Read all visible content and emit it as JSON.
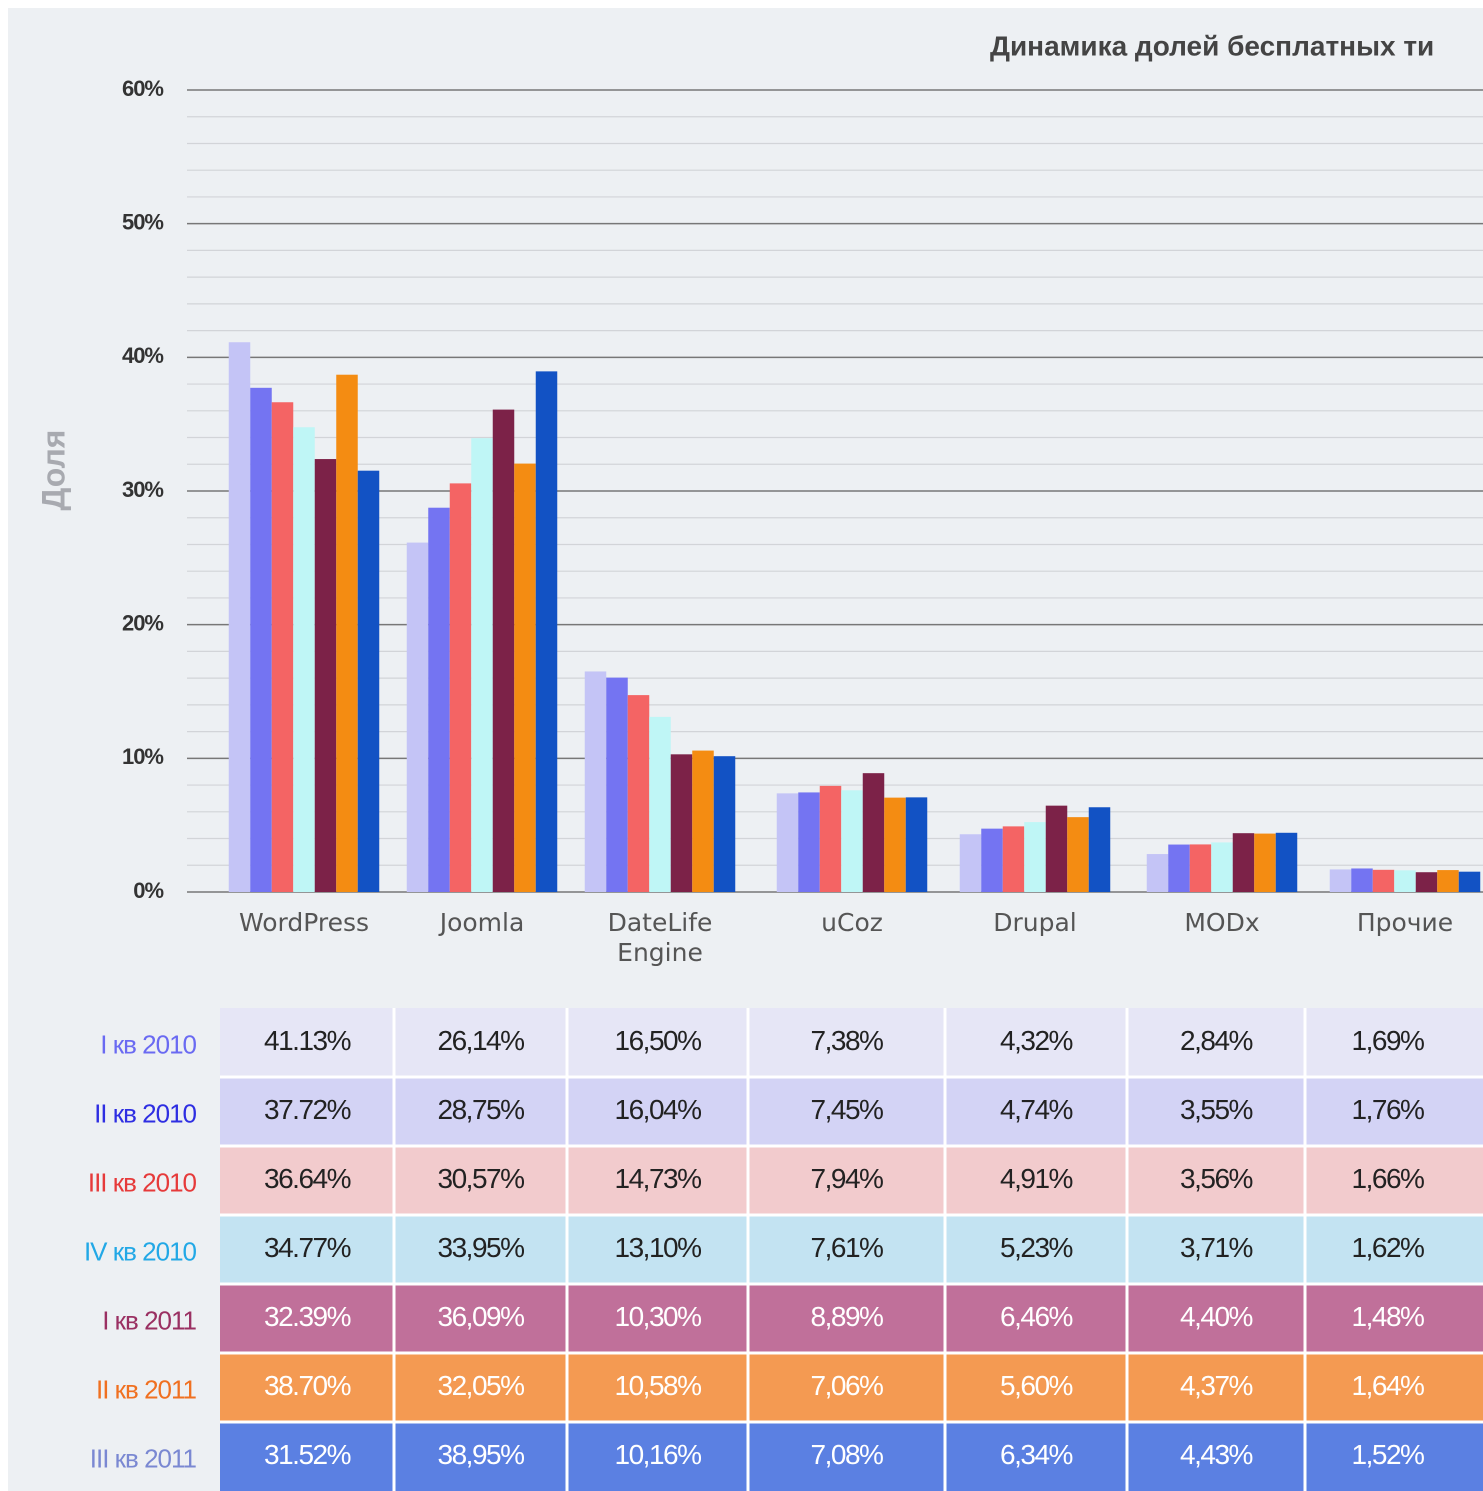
{
  "chart_data": {
    "type": "bar",
    "title": "Динамика долей бесплатных ти",
    "ylabel": "Доля",
    "categories": [
      "WordPress",
      "Joomla",
      "DateLife Engine",
      "uCoz",
      "Drupal",
      "MODx",
      "Прочие"
    ],
    "ylim": [
      0,
      60
    ],
    "yticks": [
      {
        "value": 0,
        "label": "0%"
      },
      {
        "value": 10,
        "label": "10%"
      },
      {
        "value": 20,
        "label": "20%"
      },
      {
        "value": 30,
        "label": "30%"
      },
      {
        "value": 40,
        "label": "40%"
      },
      {
        "value": 50,
        "label": "50%"
      },
      {
        "value": 60,
        "label": "60%"
      }
    ],
    "minor_yticks": [
      2,
      4,
      6,
      8,
      12,
      14,
      16,
      18,
      22,
      24,
      26,
      28,
      32,
      34,
      36,
      38,
      42,
      44,
      46,
      48,
      52,
      54,
      56,
      58
    ],
    "grid": true,
    "series": [
      {
        "name": "I кв 2010",
        "color": "#c4c4f6",
        "values": [
          41.13,
          26.14,
          16.5,
          7.38,
          4.32,
          2.84,
          1.69
        ],
        "value_labels": [
          "41.13%",
          "26,14%",
          "16,50%",
          "7,38%",
          "4,32%",
          "2,84%",
          "1,69%"
        ]
      },
      {
        "name": "II кв 2010",
        "color": "#7474f2",
        "values": [
          37.72,
          28.75,
          16.04,
          7.45,
          4.74,
          3.55,
          1.76
        ],
        "value_labels": [
          "37.72%",
          "28,75%",
          "16,04%",
          "7,45%",
          "4,74%",
          "3,55%",
          "1,76%"
        ]
      },
      {
        "name": "III кв 2010",
        "color": "#f46464",
        "values": [
          36.64,
          30.57,
          14.73,
          7.94,
          4.91,
          3.56,
          1.66
        ],
        "value_labels": [
          "36.64%",
          "30,57%",
          "14,73%",
          "7,94%",
          "4,91%",
          "3,56%",
          "1,66%"
        ]
      },
      {
        "name": "IV кв 2010",
        "color": "#bff6f6",
        "values": [
          34.77,
          33.95,
          13.1,
          7.61,
          5.23,
          3.71,
          1.62
        ],
        "value_labels": [
          "34.77%",
          "33,95%",
          "13,10%",
          "7,61%",
          "5,23%",
          "3,71%",
          "1,62%"
        ]
      },
      {
        "name": "I кв 2011",
        "color": "#7c2248",
        "values": [
          32.39,
          36.09,
          10.3,
          8.89,
          6.46,
          4.4,
          1.48
        ],
        "value_labels": [
          "32.39%",
          "36,09%",
          "10,30%",
          "8,89%",
          "6,46%",
          "4,40%",
          "1,48%"
        ]
      },
      {
        "name": "II кв 2011",
        "color": "#f48c12",
        "values": [
          38.7,
          32.05,
          10.58,
          7.06,
          5.6,
          4.37,
          1.64
        ],
        "value_labels": [
          "38.70%",
          "32,05%",
          "10,58%",
          "7,06%",
          "5,60%",
          "4,37%",
          "1,64%"
        ]
      },
      {
        "name": "III кв 2011",
        "color": "#1252c4",
        "values": [
          31.52,
          38.95,
          10.16,
          7.08,
          6.34,
          4.43,
          1.52
        ],
        "value_labels": [
          "31.52%",
          "38,95%",
          "10,16%",
          "7,08%",
          "6,34%",
          "4,43%",
          "1,52%"
        ]
      }
    ]
  }
}
